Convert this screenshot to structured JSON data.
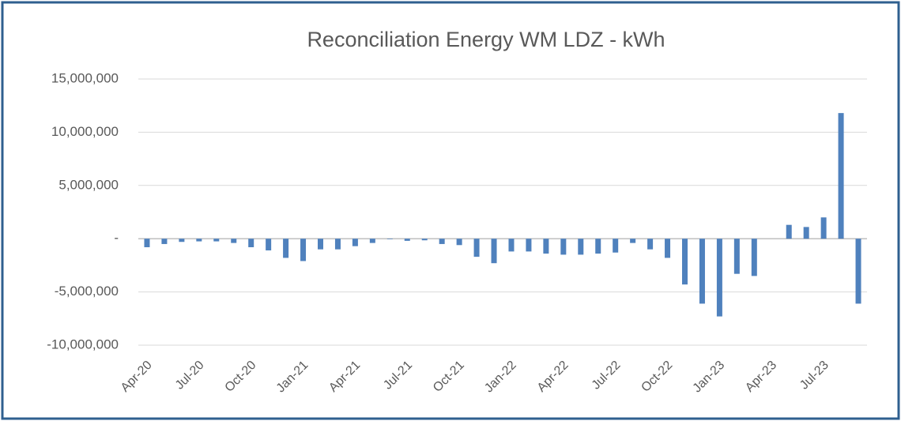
{
  "chart_data": {
    "type": "bar",
    "title": "Reconciliation Energy WM LDZ - kWh",
    "categories": [
      "Apr-20",
      null,
      null,
      "Jul-20",
      null,
      null,
      "Oct-20",
      null,
      null,
      "Jan-21",
      null,
      null,
      "Apr-21",
      null,
      null,
      "Jul-21",
      null,
      null,
      "Oct-21",
      null,
      null,
      "Jan-22",
      null,
      null,
      "Apr-22",
      null,
      null,
      "Jul-22",
      null,
      null,
      "Oct-22",
      null,
      null,
      "Jan-23",
      null,
      null,
      "Apr-23",
      null,
      null,
      "Jul-23",
      null,
      null
    ],
    "values": [
      -800000,
      -500000,
      -300000,
      -250000,
      -250000,
      -400000,
      -800000,
      -1100000,
      -1800000,
      -2100000,
      -1000000,
      -1000000,
      -700000,
      -400000,
      -50000,
      -200000,
      -150000,
      -500000,
      -600000,
      -1700000,
      -2300000,
      -1200000,
      -1200000,
      -1400000,
      -1500000,
      -1500000,
      -1400000,
      -1300000,
      -400000,
      -1000000,
      -1800000,
      -4300000,
      -6100000,
      -7300000,
      -3300000,
      -3500000,
      0,
      1300000,
      1100000,
      2000000,
      11800000,
      -6100000
    ],
    "color": "#4f81bd",
    "ylim": [
      -10000000,
      15000000
    ],
    "yticks": [
      {
        "value": -10000000,
        "label": "-10,000,000"
      },
      {
        "value": -5000000,
        "label": "-5,000,000"
      },
      {
        "value": 0,
        "label": "-"
      },
      {
        "value": 5000000,
        "label": "5,000,000"
      },
      {
        "value": 10000000,
        "label": "10,000,000"
      },
      {
        "value": 15000000,
        "label": "15,000,000"
      }
    ],
    "grid": true
  }
}
